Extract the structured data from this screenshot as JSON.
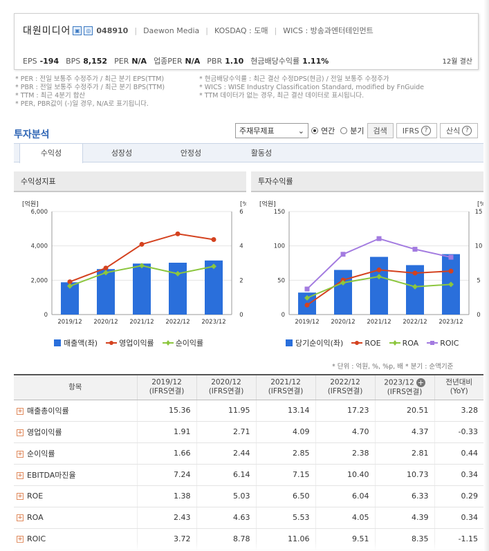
{
  "company": {
    "name": "대원미디어",
    "code": "048910",
    "english_name": "Daewon Media",
    "market": "KOSDAQ : 도매",
    "wics": "WICS : 방송과엔터테인먼트",
    "icon1": "building-icon",
    "icon2": "map-icon"
  },
  "metrics": {
    "eps_label": "EPS",
    "eps_value": "-194",
    "bps_label": "BPS",
    "bps_value": "8,152",
    "per_label": "PER",
    "per_value": "N/A",
    "iper_label": "업종PER",
    "iper_value": "N/A",
    "pbr_label": "PBR",
    "pbr_value": "1.10",
    "div_label": "현금배당수익률",
    "div_value": "1.11%",
    "fiscal": "12월 결산"
  },
  "notes": {
    "left": [
      "* PER : 전일 보통주 수정주가 / 최근 분기 EPS(TTM)",
      "* PBR : 전일 보통주 수정주가 / 최근 분기 BPS(TTM)",
      "* TTM : 최근 4분기 합산",
      "* PER, PBR값이 (-)일 경우, N/A로 표기됩니다."
    ],
    "right": [
      "* 현금배당수익률 : 최근 결산 수정DPS(현금) / 전일 보통주 수정주가",
      "* WICS : WISE Industry Classification Standard, modified by FnGuide",
      "* TTM 데이터가 없는 경우, 최근 결산 데이터로 표시됩니다."
    ]
  },
  "analysis": {
    "title": "투자분석",
    "select_value": "주재무제표",
    "radio_annual": "연간",
    "radio_quarter": "분기",
    "search_label": "검색",
    "ifrs_label": "IFRS",
    "formula_label": "산식",
    "tabs": [
      "수익성",
      "성장성",
      "안정성",
      "활동성"
    ]
  },
  "colors": {
    "blue": "#2a6fdb",
    "red": "#d4421f",
    "green": "#8cc63e",
    "purple": "#a37be0"
  },
  "chart_data": [
    {
      "type": "bar",
      "title": "수익성지표",
      "categories": [
        "2019/12",
        "2020/12",
        "2021/12",
        "2022/12",
        "2023/12"
      ],
      "left_unit": "[억원]",
      "right_unit": "[%]",
      "ylim_left": [
        0,
        6000
      ],
      "ylim_right": [
        0,
        6
      ],
      "left_ticks": [
        "0",
        "2,000",
        "4,000",
        "6,000"
      ],
      "right_ticks": [
        "0",
        "2",
        "4",
        "6"
      ],
      "series": [
        {
          "name": "매출액(좌)",
          "kind": "bar",
          "axis": "left",
          "values": [
            1880,
            2650,
            2970,
            3020,
            3150
          ]
        },
        {
          "name": "영업이익률",
          "kind": "line",
          "axis": "right",
          "values": [
            1.91,
            2.71,
            4.09,
            4.7,
            4.37
          ]
        },
        {
          "name": "순이익률",
          "kind": "line",
          "axis": "right",
          "values": [
            1.66,
            2.44,
            2.85,
            2.38,
            2.81
          ]
        }
      ]
    },
    {
      "type": "bar",
      "title": "투자수익률",
      "categories": [
        "2019/12",
        "2020/12",
        "2021/12",
        "2022/12",
        "2023/12"
      ],
      "left_unit": "[억원]",
      "right_unit": "[%]",
      "ylim_left": [
        0,
        150
      ],
      "ylim_right": [
        0,
        15
      ],
      "left_ticks": [
        "0",
        "50",
        "100",
        "150"
      ],
      "right_ticks": [
        "0",
        "5",
        "10",
        "15"
      ],
      "series": [
        {
          "name": "당기순이익(좌)",
          "kind": "bar",
          "axis": "left",
          "values": [
            32,
            65,
            84,
            72,
            88
          ]
        },
        {
          "name": "ROE",
          "kind": "line",
          "axis": "right",
          "values": [
            1.38,
            5.03,
            6.5,
            6.04,
            6.33
          ]
        },
        {
          "name": "ROA",
          "kind": "line",
          "axis": "right",
          "values": [
            2.43,
            4.63,
            5.53,
            4.05,
            4.39
          ]
        },
        {
          "name": "ROIC",
          "kind": "line",
          "axis": "right",
          "values": [
            3.72,
            8.78,
            11.06,
            9.51,
            8.35
          ]
        }
      ]
    }
  ],
  "table": {
    "unit_note": "* 단위 : 억원, %, %p, 배   * 분기 : 순액기준",
    "headers": [
      {
        "l1": "항목",
        "l2": ""
      },
      {
        "l1": "2019/12",
        "l2": "(IFRS연결)"
      },
      {
        "l1": "2020/12",
        "l2": "(IFRS연결)"
      },
      {
        "l1": "2021/12",
        "l2": "(IFRS연결)"
      },
      {
        "l1": "2022/12",
        "l2": "(IFRS연결)"
      },
      {
        "l1": "2023/12",
        "l2": "(IFRS연결)"
      },
      {
        "l1": "전년대비",
        "l2": "(YoY)"
      }
    ],
    "rows": [
      {
        "label": "매출총이익률",
        "values": [
          "15.36",
          "11.95",
          "13.14",
          "17.23",
          "20.51",
          "3.28"
        ]
      },
      {
        "label": "영업이익률",
        "values": [
          "1.91",
          "2.71",
          "4.09",
          "4.70",
          "4.37",
          "-0.33"
        ]
      },
      {
        "label": "순이익률",
        "values": [
          "1.66",
          "2.44",
          "2.85",
          "2.38",
          "2.81",
          "0.44"
        ]
      },
      {
        "label": "EBITDA마진율",
        "values": [
          "7.24",
          "6.14",
          "7.15",
          "10.40",
          "10.73",
          "0.34"
        ]
      },
      {
        "label": "ROE",
        "values": [
          "1.38",
          "5.03",
          "6.50",
          "6.04",
          "6.33",
          "0.29"
        ]
      },
      {
        "label": "ROA",
        "values": [
          "2.43",
          "4.63",
          "5.53",
          "4.05",
          "4.39",
          "0.34"
        ]
      },
      {
        "label": "ROIC",
        "values": [
          "3.72",
          "8.78",
          "11.06",
          "9.51",
          "8.35",
          "-1.15"
        ]
      }
    ]
  }
}
